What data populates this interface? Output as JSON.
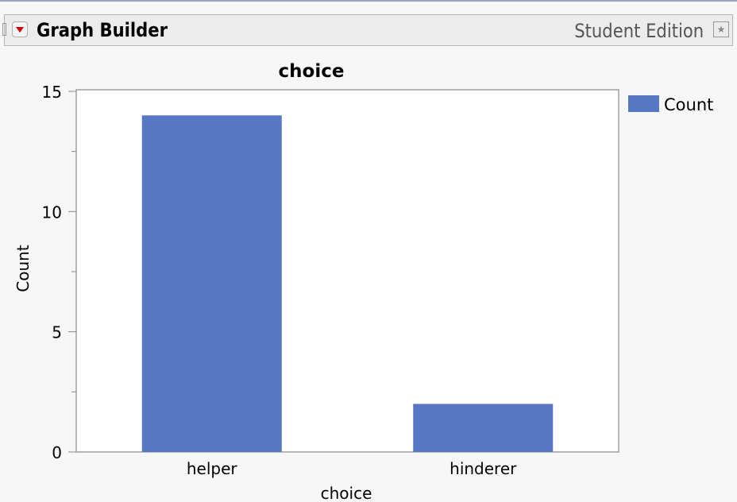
{
  "header": {
    "title": "Graph Builder",
    "edition": "Student Edition",
    "menu_icon": "red-triangle-menu-icon",
    "pin_icon": "pin-icon"
  },
  "chart_data": {
    "type": "bar",
    "title": "choice",
    "xlabel": "choice",
    "ylabel": "Count",
    "categories": [
      "helper",
      "hinderer"
    ],
    "series": [
      {
        "name": "Count",
        "values": [
          14,
          2
        ],
        "color": "#5577c4"
      }
    ],
    "ylim": [
      0,
      15
    ],
    "yticks": [
      0,
      5,
      10,
      15
    ],
    "minor_ticks": [
      2.5,
      7.5,
      12.5
    ],
    "grid": false,
    "legend": {
      "position": "right",
      "entries": [
        "Count"
      ]
    }
  }
}
